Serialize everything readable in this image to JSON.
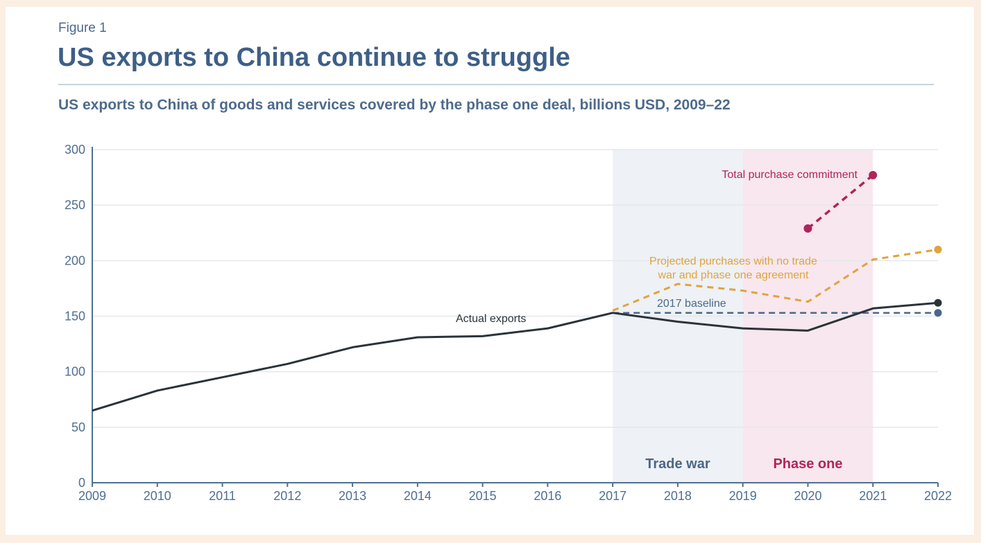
{
  "figure_label": "Figure 1",
  "title": "US exports to China continue to struggle",
  "subtitle": "US exports to China of goods and services covered by the phase one deal, billions USD, 2009–22",
  "colors": {
    "actual": "#2b3338",
    "baseline": "#4b6788",
    "projected": "#e0a33e",
    "commitment": "#b0245c",
    "trade_war_band": "#eef1f5",
    "phase_one_band": "#f8e7ee",
    "grid": "#e3e8ef",
    "axis": "#4f6f92"
  },
  "chart_data": {
    "type": "line",
    "x": [
      2009,
      2010,
      2011,
      2012,
      2013,
      2014,
      2015,
      2016,
      2017,
      2018,
      2019,
      2020,
      2021,
      2022
    ],
    "x_tick_labels": [
      "2009",
      "2010",
      "2011",
      "2012",
      "2013",
      "2014",
      "2015",
      "2016",
      "2017",
      "2018",
      "2019",
      "2020",
      "2021",
      "2022"
    ],
    "ylim": [
      0,
      300
    ],
    "y_ticks": [
      0,
      50,
      100,
      150,
      200,
      250,
      300
    ],
    "grid": true,
    "series": [
      {
        "name": "Actual exports",
        "style": "solid",
        "x": [
          2009,
          2010,
          2011,
          2012,
          2013,
          2014,
          2015,
          2016,
          2017,
          2018,
          2019,
          2020,
          2021,
          2022
        ],
        "values": [
          65,
          83,
          95,
          107,
          122,
          131,
          132,
          139,
          153,
          145,
          139,
          137,
          157,
          162
        ]
      },
      {
        "name": "2017 baseline",
        "style": "dashed",
        "x": [
          2017,
          2022
        ],
        "values": [
          153,
          153
        ]
      },
      {
        "name": "Projected purchases with no trade war and phase one agreement",
        "label_lines": [
          "Projected purchases with no trade",
          "war and phase one agreement"
        ],
        "style": "dashed",
        "x": [
          2017,
          2018,
          2019,
          2020,
          2021,
          2022
        ],
        "values": [
          155,
          179,
          173,
          163,
          201,
          210
        ]
      },
      {
        "name": "Total purchase commitment",
        "style": "dashed",
        "x": [
          2020,
          2021
        ],
        "values": [
          229,
          277
        ]
      }
    ],
    "bands": [
      {
        "label": "Trade war",
        "start": 2017,
        "end": 2019
      },
      {
        "label": "Phase one",
        "start": 2019,
        "end": 2021
      }
    ]
  }
}
